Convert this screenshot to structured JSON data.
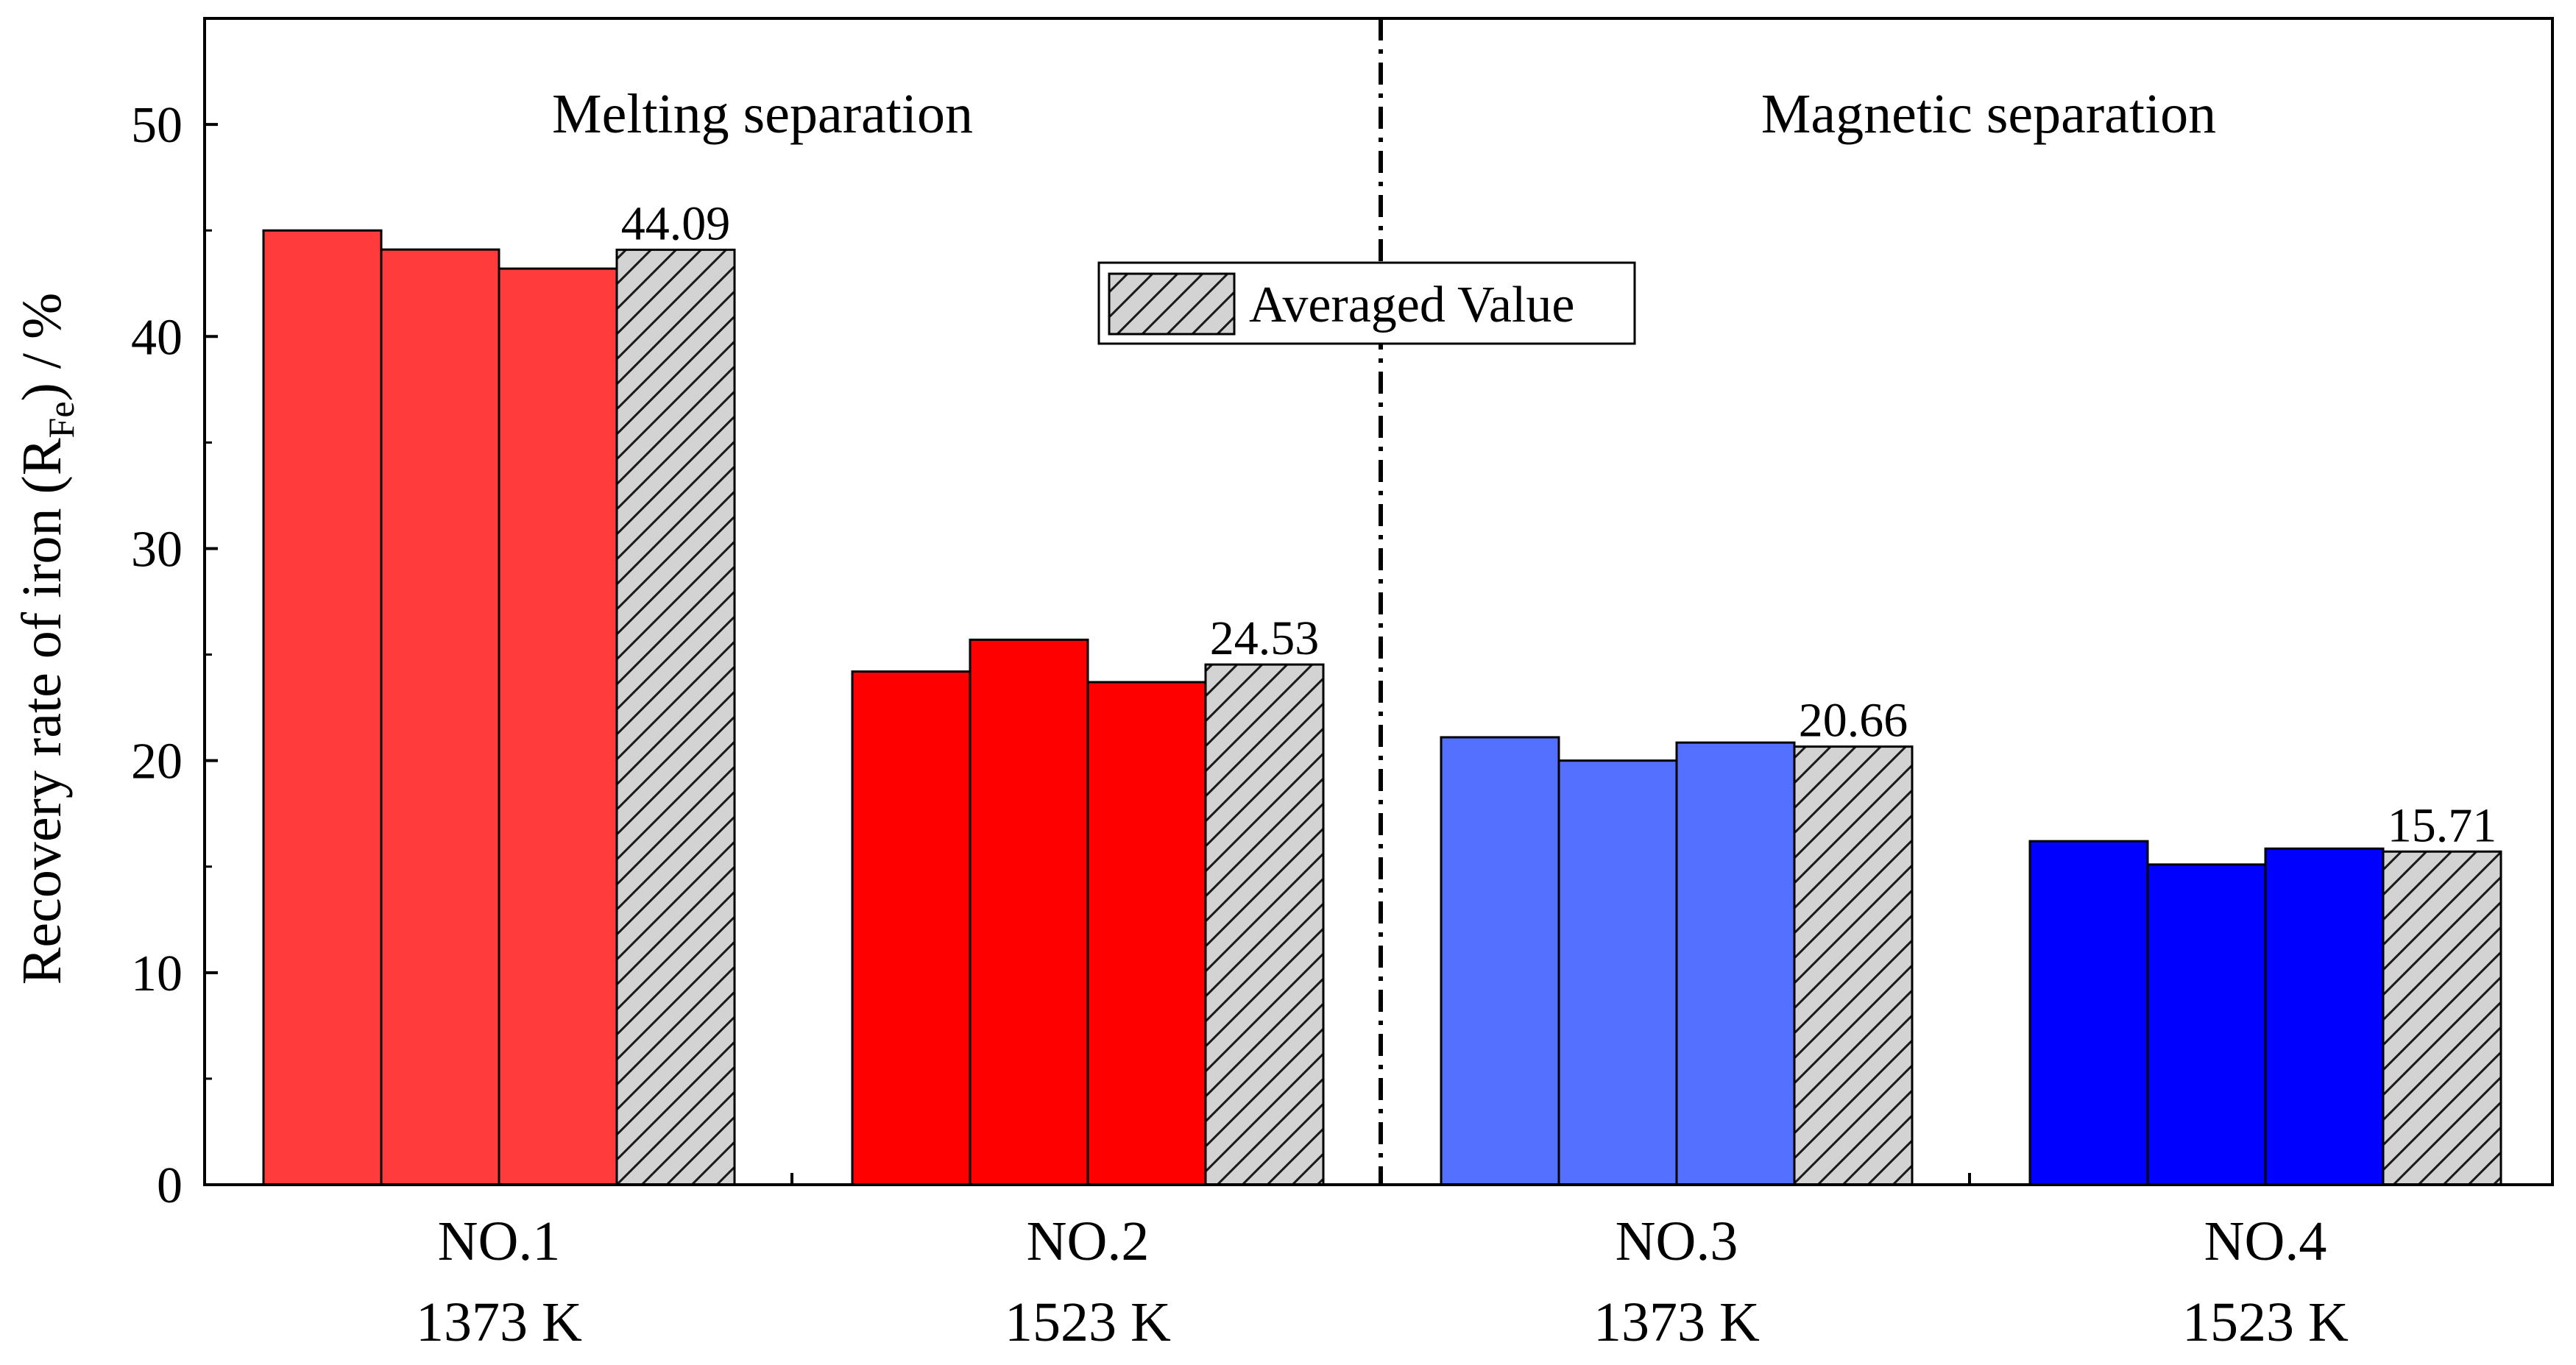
{
  "chart_data": {
    "type": "bar",
    "ylabel_main": "Recovery rate of iron (R",
    "ylabel_sub": "Fe",
    "ylabel_tail": ") / %",
    "ylim": [
      0,
      55
    ],
    "yticks": [
      0,
      10,
      20,
      30,
      40,
      50
    ],
    "groups": [
      {
        "name": "NO.1",
        "temp": "1373 K",
        "values": [
          45.0,
          44.1,
          43.2
        ],
        "average": 44.09,
        "average_label": "44.09",
        "color": "#ff3b3b"
      },
      {
        "name": "NO.2",
        "temp": "1523 K",
        "values": [
          24.2,
          25.7,
          23.7
        ],
        "average": 24.53,
        "average_label": "24.53",
        "color": "#ff0000"
      },
      {
        "name": "NO.3",
        "temp": "1373 K",
        "values": [
          21.1,
          20.0,
          20.85
        ],
        "average": 20.66,
        "average_label": "20.66",
        "color": "#5470ff"
      },
      {
        "name": "NO.4",
        "temp": "1523 K",
        "values": [
          16.2,
          15.1,
          15.85
        ],
        "average": 15.71,
        "average_label": "15.71",
        "color": "#0000ff"
      }
    ],
    "average_color": "#d3d3d3",
    "legend": {
      "label": "Averaged Value",
      "position": "top-center"
    },
    "annotations": {
      "left": "Melting separation",
      "right": "Magnetic separation"
    }
  }
}
